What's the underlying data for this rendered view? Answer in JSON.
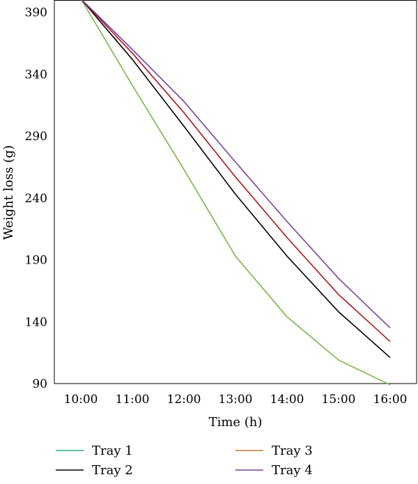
{
  "chart_data": {
    "type": "line",
    "title": "",
    "xlabel": "Time (h)",
    "ylabel": "Weight loss (g)",
    "categories": [
      "10:00",
      "11:00",
      "12:00",
      "13:00",
      "14:00",
      "15:00",
      "16:00"
    ],
    "yticks": [
      "90",
      "140",
      "190",
      "240",
      "290",
      "340",
      "390"
    ],
    "ylim": [
      90,
      400
    ],
    "grid": false,
    "legend_position": "bottom",
    "series": [
      {
        "name": "Tray 1",
        "color": "#7ab648",
        "legend_color": "#2aa784",
        "values": [
          401,
          331,
          263,
          193,
          144,
          109,
          89
        ]
      },
      {
        "name": "Tray 2",
        "color": "#000000",
        "legend_color": "#000000",
        "values": [
          401,
          352,
          298,
          243,
          193,
          148,
          111
        ]
      },
      {
        "name": "Tray 3",
        "color": "#b0121b",
        "legend_color": "#c07a2a",
        "values": [
          401,
          357,
          309,
          257,
          208,
          162,
          124
        ]
      },
      {
        "name": "Tray 4",
        "color": "#7b3f9e",
        "legend_color": "#7b3f9e",
        "values": [
          401,
          360,
          318,
          269,
          221,
          175,
          135
        ]
      }
    ]
  }
}
